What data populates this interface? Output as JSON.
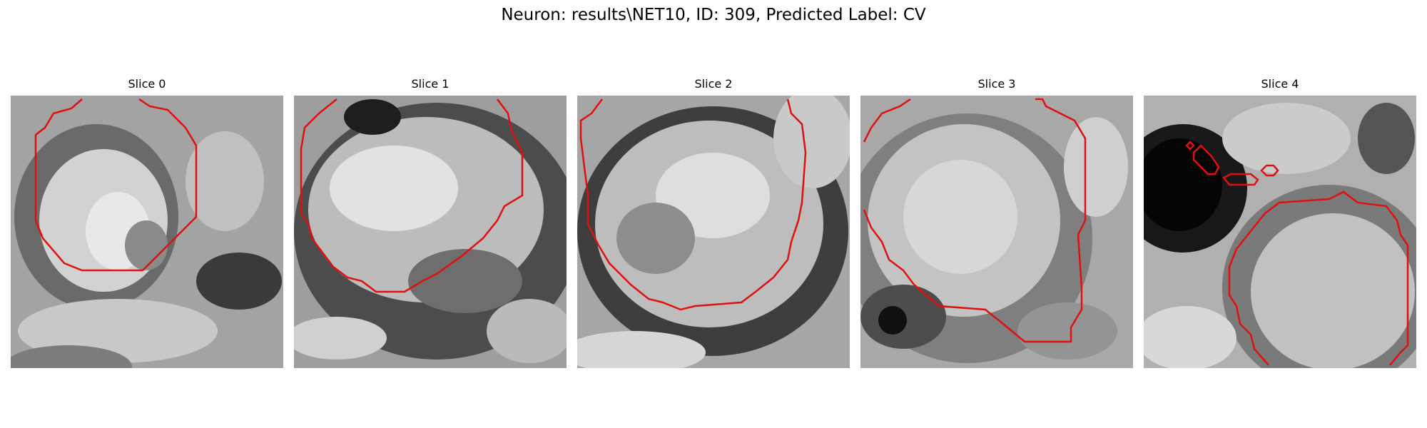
{
  "figure": {
    "title": "Neuron: results\\NET10, ID: 309, Predicted Label: CV",
    "contour_color": "#e01010",
    "image_colormap": "gray"
  },
  "slices": [
    {
      "title": "Slice 0"
    },
    {
      "title": "Slice 1"
    },
    {
      "title": "Slice 2"
    },
    {
      "title": "Slice 3"
    },
    {
      "title": "Slice 4"
    }
  ]
}
